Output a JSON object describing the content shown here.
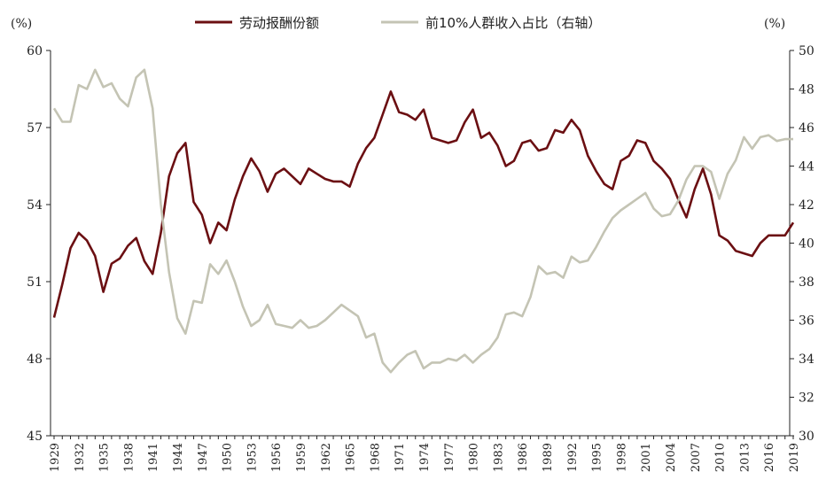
{
  "chart_data": {
    "type": "line",
    "title": "",
    "xlabel": "",
    "left_axis": {
      "unit_label": "(%)",
      "range": [
        45,
        60
      ],
      "ticks": [
        "45",
        "48",
        "51",
        "54",
        "57",
        "60"
      ]
    },
    "right_axis": {
      "unit_label": "(%)",
      "range": [
        30,
        50
      ],
      "ticks": [
        "30",
        "32",
        "34",
        "36",
        "38",
        "40",
        "42",
        "44",
        "46",
        "48",
        "50"
      ]
    },
    "x_range": [
      1929,
      2019
    ],
    "x_tick_labels": [
      "1929",
      "1932",
      "1935",
      "1938",
      "1941",
      "1944",
      "1947",
      "1950",
      "1953",
      "1956",
      "1959",
      "1962",
      "1965",
      "1968",
      "1971",
      "1974",
      "1977",
      "1980",
      "1983",
      "1986",
      "1989",
      "1992",
      "1995",
      "1998",
      "2001",
      "2004",
      "2007",
      "2010",
      "2013",
      "2016",
      "2019"
    ],
    "legend_position": "top-center",
    "series": [
      {
        "name": "劳动报酬份额",
        "axis": "left",
        "color": "#6b0f12",
        "points": [
          [
            1929,
            49.6
          ],
          [
            1930,
            50.9
          ],
          [
            1931,
            52.3
          ],
          [
            1932,
            52.9
          ],
          [
            1933,
            52.6
          ],
          [
            1934,
            52.0
          ],
          [
            1935,
            50.6
          ],
          [
            1936,
            51.7
          ],
          [
            1937,
            51.9
          ],
          [
            1938,
            52.4
          ],
          [
            1939,
            52.7
          ],
          [
            1940,
            51.8
          ],
          [
            1941,
            51.3
          ],
          [
            1942,
            52.9
          ],
          [
            1943,
            55.1
          ],
          [
            1944,
            56.0
          ],
          [
            1945,
            56.4
          ],
          [
            1946,
            54.1
          ],
          [
            1947,
            53.6
          ],
          [
            1948,
            52.5
          ],
          [
            1949,
            53.3
          ],
          [
            1950,
            53.0
          ],
          [
            1951,
            54.2
          ],
          [
            1952,
            55.1
          ],
          [
            1953,
            55.8
          ],
          [
            1954,
            55.3
          ],
          [
            1955,
            54.5
          ],
          [
            1956,
            55.2
          ],
          [
            1957,
            55.4
          ],
          [
            1958,
            55.1
          ],
          [
            1959,
            54.8
          ],
          [
            1960,
            55.4
          ],
          [
            1961,
            55.2
          ],
          [
            1962,
            55.0
          ],
          [
            1963,
            54.9
          ],
          [
            1964,
            54.9
          ],
          [
            1965,
            54.7
          ],
          [
            1966,
            55.6
          ],
          [
            1967,
            56.2
          ],
          [
            1968,
            56.6
          ],
          [
            1969,
            57.5
          ],
          [
            1970,
            58.4
          ],
          [
            1971,
            57.6
          ],
          [
            1972,
            57.5
          ],
          [
            1973,
            57.3
          ],
          [
            1974,
            57.7
          ],
          [
            1975,
            56.6
          ],
          [
            1976,
            56.5
          ],
          [
            1977,
            56.4
          ],
          [
            1978,
            56.5
          ],
          [
            1979,
            57.2
          ],
          [
            1980,
            57.7
          ],
          [
            1981,
            56.6
          ],
          [
            1982,
            56.8
          ],
          [
            1983,
            56.3
          ],
          [
            1984,
            55.5
          ],
          [
            1985,
            55.7
          ],
          [
            1986,
            56.4
          ],
          [
            1987,
            56.5
          ],
          [
            1988,
            56.1
          ],
          [
            1989,
            56.2
          ],
          [
            1990,
            56.9
          ],
          [
            1991,
            56.8
          ],
          [
            1992,
            57.3
          ],
          [
            1993,
            56.9
          ],
          [
            1994,
            55.9
          ],
          [
            1995,
            55.3
          ],
          [
            1996,
            54.8
          ],
          [
            1997,
            54.6
          ],
          [
            1998,
            55.7
          ],
          [
            1999,
            55.9
          ],
          [
            2000,
            56.5
          ],
          [
            2001,
            56.4
          ],
          [
            2002,
            55.7
          ],
          [
            2003,
            55.4
          ],
          [
            2004,
            55.0
          ],
          [
            2005,
            54.2
          ],
          [
            2006,
            53.5
          ],
          [
            2007,
            54.6
          ],
          [
            2008,
            55.4
          ],
          [
            2009,
            54.4
          ],
          [
            2010,
            52.8
          ],
          [
            2011,
            52.6
          ],
          [
            2012,
            52.2
          ],
          [
            2013,
            52.1
          ],
          [
            2014,
            52.0
          ],
          [
            2015,
            52.5
          ],
          [
            2016,
            52.8
          ],
          [
            2017,
            52.8
          ],
          [
            2018,
            52.8
          ],
          [
            2019,
            53.3
          ]
        ]
      },
      {
        "name": "前10%人群收入占比（右轴）",
        "axis": "right",
        "color": "#c4c4b4",
        "points": [
          [
            1929,
            47.0
          ],
          [
            1930,
            46.3
          ],
          [
            1931,
            46.3
          ],
          [
            1932,
            48.2
          ],
          [
            1933,
            48.0
          ],
          [
            1934,
            49.0
          ],
          [
            1935,
            48.1
          ],
          [
            1936,
            48.3
          ],
          [
            1937,
            47.5
          ],
          [
            1938,
            47.1
          ],
          [
            1939,
            48.6
          ],
          [
            1940,
            49.0
          ],
          [
            1941,
            47.0
          ],
          [
            1942,
            42.0
          ],
          [
            1943,
            38.5
          ],
          [
            1944,
            36.1
          ],
          [
            1945,
            35.3
          ],
          [
            1946,
            37.0
          ],
          [
            1947,
            36.9
          ],
          [
            1948,
            38.9
          ],
          [
            1949,
            38.4
          ],
          [
            1950,
            39.1
          ],
          [
            1951,
            38.0
          ],
          [
            1952,
            36.7
          ],
          [
            1953,
            35.7
          ],
          [
            1954,
            36.0
          ],
          [
            1955,
            36.8
          ],
          [
            1956,
            35.8
          ],
          [
            1957,
            35.7
          ],
          [
            1958,
            35.6
          ],
          [
            1959,
            36.0
          ],
          [
            1960,
            35.6
          ],
          [
            1961,
            35.7
          ],
          [
            1962,
            36.0
          ],
          [
            1963,
            36.4
          ],
          [
            1964,
            36.8
          ],
          [
            1965,
            36.5
          ],
          [
            1966,
            36.2
          ],
          [
            1967,
            35.1
          ],
          [
            1968,
            35.3
          ],
          [
            1969,
            33.8
          ],
          [
            1970,
            33.3
          ],
          [
            1971,
            33.8
          ],
          [
            1972,
            34.2
          ],
          [
            1973,
            34.4
          ],
          [
            1974,
            33.5
          ],
          [
            1975,
            33.8
          ],
          [
            1976,
            33.8
          ],
          [
            1977,
            34.0
          ],
          [
            1978,
            33.9
          ],
          [
            1979,
            34.2
          ],
          [
            1980,
            33.8
          ],
          [
            1981,
            34.2
          ],
          [
            1982,
            34.5
          ],
          [
            1983,
            35.1
          ],
          [
            1984,
            36.3
          ],
          [
            1985,
            36.4
          ],
          [
            1986,
            36.2
          ],
          [
            1987,
            37.2
          ],
          [
            1988,
            38.8
          ],
          [
            1989,
            38.4
          ],
          [
            1990,
            38.5
          ],
          [
            1991,
            38.2
          ],
          [
            1992,
            39.3
          ],
          [
            1993,
            39.0
          ],
          [
            1994,
            39.1
          ],
          [
            1995,
            39.8
          ],
          [
            1996,
            40.6
          ],
          [
            1997,
            41.3
          ],
          [
            1998,
            41.7
          ],
          [
            1999,
            42.0
          ],
          [
            2000,
            42.3
          ],
          [
            2001,
            42.6
          ],
          [
            2002,
            41.8
          ],
          [
            2003,
            41.4
          ],
          [
            2004,
            41.5
          ],
          [
            2005,
            42.2
          ],
          [
            2006,
            43.3
          ],
          [
            2007,
            44.0
          ],
          [
            2008,
            44.0
          ],
          [
            2009,
            43.7
          ],
          [
            2010,
            42.3
          ],
          [
            2011,
            43.6
          ],
          [
            2012,
            44.3
          ],
          [
            2013,
            45.5
          ],
          [
            2014,
            44.9
          ],
          [
            2015,
            45.5
          ],
          [
            2016,
            45.6
          ],
          [
            2017,
            45.3
          ],
          [
            2018,
            45.4
          ],
          [
            2019,
            45.4
          ]
        ]
      }
    ]
  }
}
